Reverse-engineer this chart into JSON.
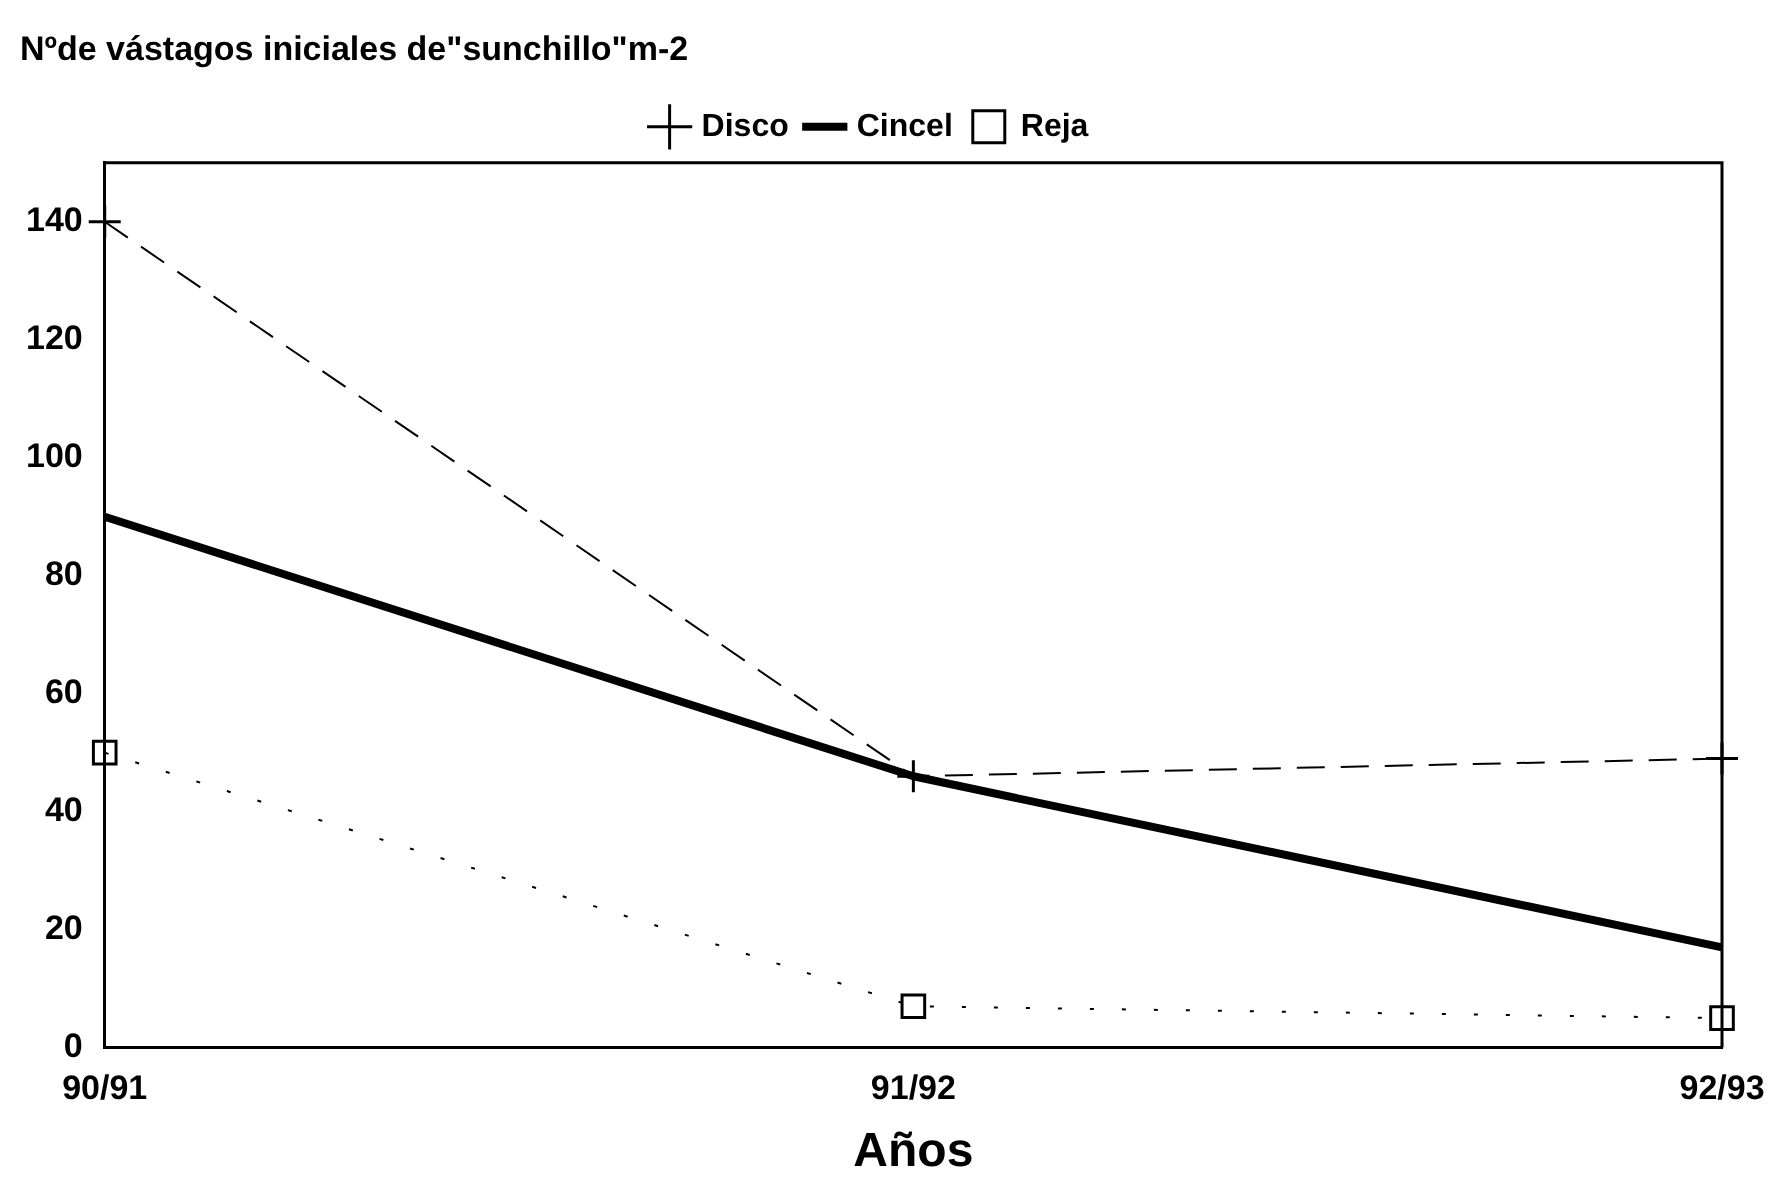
{
  "chart_data": {
    "type": "line",
    "title": "Nºde vástagos iniciales de\"sunchillo\"m-2",
    "xlabel": "Años",
    "categories": [
      "90/91",
      "91/92",
      "92/93"
    ],
    "series": [
      {
        "name": "Disco",
        "color": "#000000",
        "values": [
          140,
          46,
          49
        ],
        "line_style": "dashed",
        "marker": "cross"
      },
      {
        "name": "Cincel",
        "color": "#000000",
        "values": [
          90,
          46,
          17
        ],
        "line_style": "solid",
        "marker": "none"
      },
      {
        "name": "Reja",
        "color": "#000000",
        "values": [
          50,
          7,
          5
        ],
        "line_style": "dotted",
        "marker": "square"
      }
    ],
    "ylim": [
      0,
      150
    ],
    "yticks": [
      0,
      20,
      40,
      60,
      80,
      100,
      120,
      140
    ],
    "grid": false,
    "legend": "top"
  }
}
